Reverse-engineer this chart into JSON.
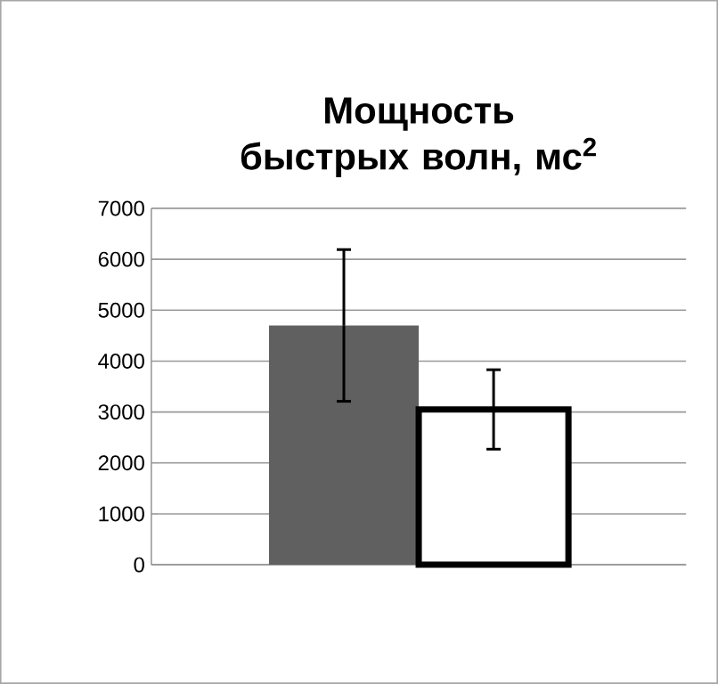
{
  "chart_data": {
    "type": "bar",
    "title": "Мощность быстрых волн, мс$^{2}$",
    "categories": [
      null
    ],
    "series": [
      {
        "color": "#606060",
        "values": [
          4700
        ],
        "errors": [
          1490
        ]
      },
      {
        "color": "#ffffff",
        "values": [
          3050
        ],
        "errors": [
          780
        ]
      }
    ],
    "ylim": [
      0,
      7000
    ],
    "yticks": [
      0,
      1000,
      2000,
      3000,
      4000,
      5000,
      6000,
      7000
    ],
    "grid": "y"
  }
}
